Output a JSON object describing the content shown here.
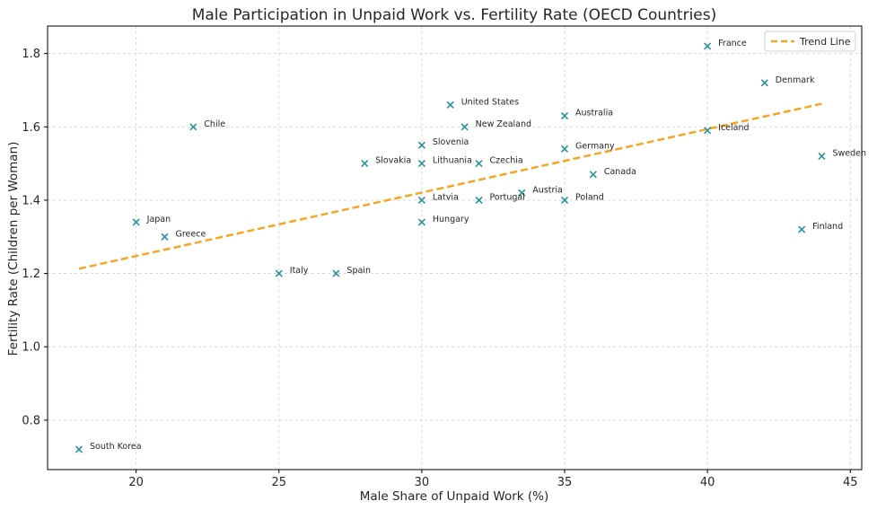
{
  "chart_data": {
    "type": "scatter",
    "title": "Male Participation in Unpaid Work vs. Fertility Rate (OECD Countries)",
    "xlabel": "Male Share of Unpaid Work (%)",
    "ylabel": "Fertility Rate (Children per Woman)",
    "xlim": [
      16.9,
      45.4
    ],
    "ylim": [
      0.665,
      1.875
    ],
    "x_ticks": [
      20,
      25,
      30,
      35,
      40,
      45
    ],
    "x_tick_labels": [
      "20",
      "25",
      "30",
      "35",
      "40",
      "45"
    ],
    "y_ticks": [
      0.8,
      1.0,
      1.2,
      1.4,
      1.6,
      1.8
    ],
    "y_tick_labels": [
      "0.8",
      "1.0",
      "1.2",
      "1.4",
      "1.6",
      "1.8"
    ],
    "grid": true,
    "legend": {
      "position": "top-right",
      "entries": [
        "Trend Line"
      ]
    },
    "points": [
      {
        "label": "South Korea",
        "x": 18,
        "y": 0.72
      },
      {
        "label": "Japan",
        "x": 20,
        "y": 1.34
      },
      {
        "label": "Greece",
        "x": 21,
        "y": 1.3
      },
      {
        "label": "Chile",
        "x": 22,
        "y": 1.6
      },
      {
        "label": "Italy",
        "x": 25,
        "y": 1.2
      },
      {
        "label": "Spain",
        "x": 27,
        "y": 1.2
      },
      {
        "label": "Slovakia",
        "x": 28,
        "y": 1.5
      },
      {
        "label": "Slovenia",
        "x": 30,
        "y": 1.55
      },
      {
        "label": "Lithuania",
        "x": 30,
        "y": 1.5
      },
      {
        "label": "Latvia",
        "x": 30,
        "y": 1.4
      },
      {
        "label": "Hungary",
        "x": 30,
        "y": 1.34
      },
      {
        "label": "United States",
        "x": 31,
        "y": 1.66
      },
      {
        "label": "New Zealand",
        "x": 31.5,
        "y": 1.6
      },
      {
        "label": "Czechia",
        "x": 32,
        "y": 1.5
      },
      {
        "label": "Portugal",
        "x": 32,
        "y": 1.4
      },
      {
        "label": "Austria",
        "x": 33.5,
        "y": 1.42
      },
      {
        "label": "Australia",
        "x": 35,
        "y": 1.63
      },
      {
        "label": "Germany",
        "x": 35,
        "y": 1.54
      },
      {
        "label": "Poland",
        "x": 35,
        "y": 1.4
      },
      {
        "label": "Canada",
        "x": 36,
        "y": 1.47
      },
      {
        "label": "France",
        "x": 40,
        "y": 1.82
      },
      {
        "label": "Iceland",
        "x": 40,
        "y": 1.59
      },
      {
        "label": "Denmark",
        "x": 42,
        "y": 1.72
      },
      {
        "label": "Finland",
        "x": 43.3,
        "y": 1.32
      },
      {
        "label": "Sweden",
        "x": 44,
        "y": 1.52
      }
    ],
    "trend_line": {
      "name": "Trend Line",
      "x": [
        18,
        44
      ],
      "y": [
        1.213,
        1.663
      ]
    },
    "colors": {
      "marker": "#2a9299",
      "trend": "#f5a623",
      "text": "#262626"
    }
  }
}
